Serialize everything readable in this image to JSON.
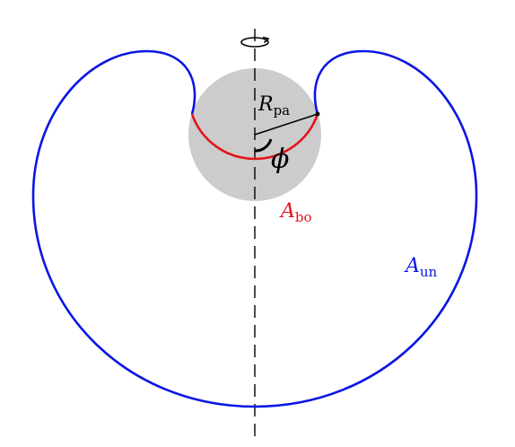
{
  "labels": {
    "radius_symbol": "R",
    "radius_subscript": "pa",
    "angle_symbol": "ϕ",
    "bound_area_symbol": "A",
    "bound_area_subscript": "bo",
    "unbound_area_symbol": "A",
    "unbound_area_subscript": "un"
  },
  "colors": {
    "particle_fill": "#cccccc",
    "bound_contour": "#e3131b",
    "unbound_contour": "#0b16e3",
    "axis": "#000000",
    "radius_line": "#000000"
  },
  "icons": {
    "rotation_marker": "rotation-arrow-icon"
  }
}
